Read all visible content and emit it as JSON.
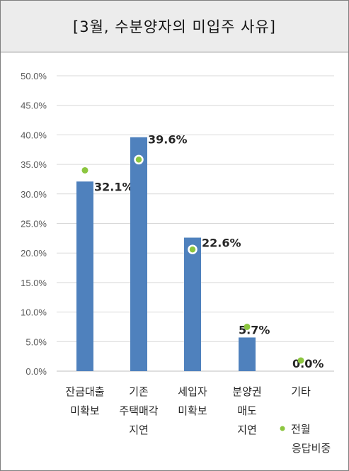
{
  "title": "[3월, 수분양자의 미입주 사유]",
  "chart_data": {
    "type": "bar",
    "categories": [
      [
        "잔금대출",
        "미확보"
      ],
      [
        "기존",
        "주택매각",
        "지연"
      ],
      [
        "세입자",
        "미확보"
      ],
      [
        "분양권",
        "매도",
        "지연"
      ],
      [
        "기타"
      ]
    ],
    "series": [
      {
        "values": [
          32.1,
          39.6,
          22.6,
          5.7,
          0.0
        ],
        "data_labels": [
          "32.1%",
          "39.6%",
          "22.6%",
          "5.7%",
          "0.0%"
        ],
        "color": "#4f81bd"
      },
      {
        "name": "전월 응답비중",
        "legend_lines": [
          "전월",
          "응답비중"
        ],
        "values": [
          34.0,
          35.8,
          20.6,
          7.5,
          1.8
        ],
        "color": "#8cc63f"
      }
    ],
    "ylim": [
      0,
      50
    ],
    "yticks": [
      "0.0%",
      "5.0%",
      "10.0%",
      "15.0%",
      "20.0%",
      "25.0%",
      "30.0%",
      "35.0%",
      "40.0%",
      "45.0%",
      "50.0%"
    ],
    "grid": true,
    "legend": "bottom-right"
  }
}
